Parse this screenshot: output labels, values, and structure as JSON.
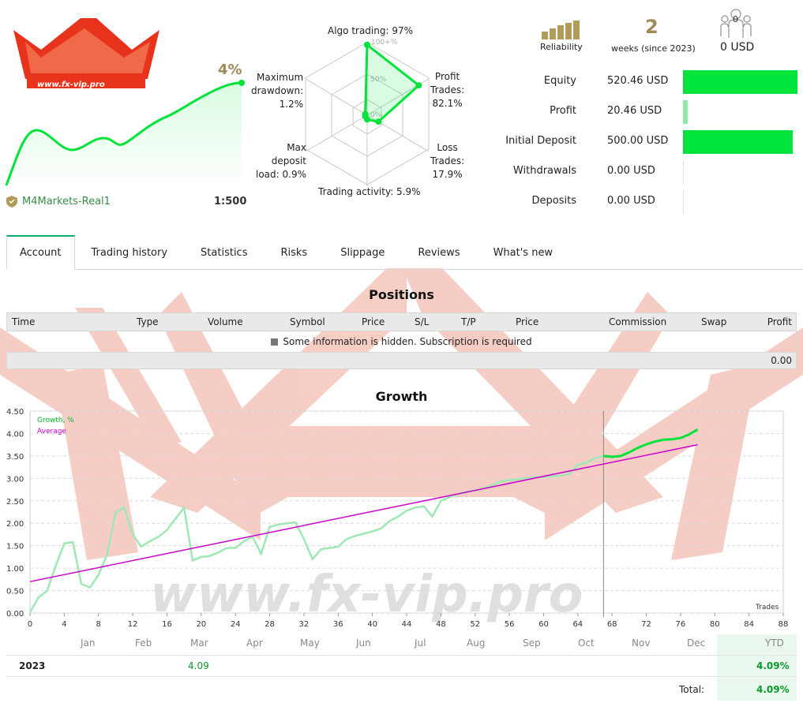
{
  "header": {
    "logo_text": "www.fx-vip.pro",
    "growth_percent": "4%",
    "broker": "M4Markets-Real1",
    "leverage": "1:500"
  },
  "radar": {
    "algo_trading": "Algo trading: 97%",
    "profit_trades_l1": "Profit",
    "profit_trades_l2": "Trades:",
    "profit_trades_l3": "82.1%",
    "loss_trades_l1": "Loss",
    "loss_trades_l2": "Trades:",
    "loss_trades_l3": "17.9%",
    "trading_activity": "Trading activity: 5.9%",
    "max_drawdown_l1": "Maximum",
    "max_drawdown_l2": "drawdown:",
    "max_drawdown_l3": "1.2%",
    "max_load_l1": "Max",
    "max_load_l2": "deposit",
    "max_load_l3": "load: 0.9%",
    "scale_100": "100+%",
    "scale_50": "50%",
    "scale_0": "0%",
    "values": {
      "algo_trading": 97,
      "profit_trades": 82.1,
      "loss_trades": 17.9,
      "trading_activity": 5.9,
      "max_load": 0.9,
      "max_drawdown": 1.2
    }
  },
  "stats": {
    "reliability_label": "Reliability",
    "weeks_value": "2",
    "weeks_label": "weeks (since 2023)",
    "subscribers_count": "0",
    "subscribers_usd": "0 USD",
    "rows": [
      {
        "label": "Equity",
        "value": "520.46 USD",
        "fraction": 1.0
      },
      {
        "label": "Profit",
        "value": "20.46 USD",
        "fraction": 0.04
      },
      {
        "label": "Initial Deposit",
        "value": "500.00 USD",
        "fraction": 0.96
      },
      {
        "label": "Withdrawals",
        "value": "0.00 USD",
        "fraction": 0
      },
      {
        "label": "Deposits",
        "value": "0.00 USD",
        "fraction": 0
      }
    ]
  },
  "tabs": [
    "Account",
    "Trading history",
    "Statistics",
    "Risks",
    "Slippage",
    "Reviews",
    "What's new"
  ],
  "positions": {
    "title": "Positions",
    "columns": [
      "Time",
      "Type",
      "Volume",
      "Symbol",
      "Price",
      "S/L",
      "T/P",
      "Price",
      "Commission",
      "Swap",
      "Profit"
    ],
    "hidden_message": "Some information is hidden. Subscription is required",
    "total": "0.00"
  },
  "growth": {
    "title": "Growth",
    "legend_growth": "Growth, %",
    "legend_average": "Average",
    "x_label": "Trades"
  },
  "chart_data": {
    "type": "line",
    "title": "Growth",
    "xlabel": "Trades",
    "ylabel": "",
    "xlim": [
      0,
      88
    ],
    "ylim": [
      0,
      4.5
    ],
    "x_ticks": [
      0,
      4,
      8,
      12,
      16,
      20,
      24,
      28,
      32,
      36,
      40,
      44,
      48,
      52,
      56,
      60,
      64,
      68,
      72,
      76,
      80,
      84,
      88
    ],
    "y_ticks": [
      0.0,
      0.5,
      1.0,
      1.5,
      2.0,
      2.5,
      3.0,
      3.5,
      4.0,
      4.5
    ],
    "grid": true,
    "legend": "top-left",
    "marker_x": 67,
    "series": [
      {
        "name": "Growth, %",
        "color": "#00e33a",
        "x": [
          0,
          1,
          2,
          3,
          4,
          5,
          6,
          7,
          8,
          9,
          10,
          11,
          12,
          13,
          14,
          15,
          16,
          17,
          18,
          19,
          20,
          21,
          22,
          23,
          24,
          25,
          26,
          27,
          28,
          29,
          30,
          31,
          32,
          33,
          34,
          35,
          36,
          37,
          38,
          39,
          40,
          41,
          42,
          43,
          44,
          45,
          46,
          47,
          48,
          49,
          50,
          51,
          52,
          53,
          54,
          55,
          56,
          57,
          58,
          59,
          60,
          61,
          62,
          63,
          64,
          65,
          66,
          67,
          68,
          69,
          70,
          71,
          72,
          73,
          74,
          75,
          76,
          77,
          78
        ],
        "values": [
          0.02,
          0.35,
          0.5,
          1.05,
          1.55,
          1.58,
          0.65,
          0.57,
          0.85,
          1.3,
          2.25,
          2.35,
          1.75,
          1.48,
          1.6,
          1.7,
          1.85,
          2.1,
          2.35,
          1.17,
          1.25,
          1.27,
          1.35,
          1.45,
          1.45,
          1.6,
          1.7,
          1.32,
          1.92,
          1.97,
          2.0,
          2.02,
          1.65,
          1.2,
          1.42,
          1.45,
          1.48,
          1.65,
          1.72,
          1.77,
          1.82,
          1.88,
          2.05,
          2.15,
          2.28,
          2.35,
          2.38,
          2.15,
          2.5,
          2.58,
          2.65,
          2.7,
          2.73,
          2.78,
          2.85,
          2.93,
          2.96,
          2.98,
          3.0,
          3.02,
          3.04,
          3.05,
          3.06,
          3.1,
          3.3,
          3.35,
          3.45,
          3.5,
          3.48,
          3.5,
          3.58,
          3.68,
          3.76,
          3.82,
          3.86,
          3.87,
          3.9,
          3.98,
          4.09
        ]
      },
      {
        "name": "Average",
        "color": "#cc00cc",
        "x": [
          0,
          78
        ],
        "values": [
          0.7,
          3.75
        ]
      }
    ]
  },
  "monthly": {
    "months": [
      "Jan",
      "Feb",
      "Mar",
      "Apr",
      "May",
      "Jun",
      "Jul",
      "Aug",
      "Sep",
      "Oct",
      "Nov",
      "Dec"
    ],
    "ytd_label": "YTD",
    "year": "2023",
    "mar_value": "4.09",
    "ytd_value": "4.09%",
    "total_label": "Total:",
    "total_value": "4.09%"
  }
}
